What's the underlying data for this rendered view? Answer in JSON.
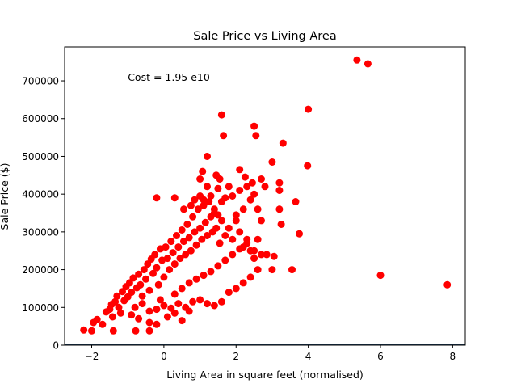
{
  "chart_data": {
    "type": "scatter",
    "title": "Sale Price vs Living Area",
    "xlabel": "Living Area in square feet (normalised)",
    "ylabel": "Sale Price ($)",
    "annotation": {
      "text": "Cost = 1.95 e10",
      "x": -1.0,
      "y": 700000
    },
    "xlim": [
      -2.75,
      8.35
    ],
    "ylim": [
      0,
      790000
    ],
    "xticks": [
      -2,
      0,
      2,
      4,
      6,
      8
    ],
    "xtick_labels": [
      "−2",
      "0",
      "2",
      "4",
      "6",
      "8"
    ],
    "yticks": [
      0,
      100000,
      200000,
      300000,
      400000,
      500000,
      600000,
      700000
    ],
    "ytick_labels": [
      "0",
      "100000",
      "200000",
      "300000",
      "400000",
      "500000",
      "600000",
      "700000"
    ],
    "grid": false,
    "point_color": "#ff0000",
    "baseline_color": "#1f3f5f",
    "series": [
      {
        "points": [
          [
            -2.22,
            40000
          ],
          [
            -2.0,
            38000
          ],
          [
            -1.95,
            60000
          ],
          [
            -1.85,
            68000
          ],
          [
            -1.7,
            55000
          ],
          [
            -1.6,
            88000
          ],
          [
            -1.5,
            95000
          ],
          [
            -1.45,
            108000
          ],
          [
            -1.42,
            75000
          ],
          [
            -1.4,
            38000
          ],
          [
            -1.35,
            115000
          ],
          [
            -1.3,
            130000
          ],
          [
            -1.25,
            100000
          ],
          [
            -1.2,
            85000
          ],
          [
            -1.15,
            142000
          ],
          [
            -1.1,
            118000
          ],
          [
            -1.05,
            155000
          ],
          [
            -1.0,
            128000
          ],
          [
            -0.95,
            165000
          ],
          [
            -0.9,
            140000
          ],
          [
            -0.85,
            178000
          ],
          [
            -0.8,
            100000
          ],
          [
            -0.78,
            38000
          ],
          [
            -0.75,
            152000
          ],
          [
            -0.7,
            188000
          ],
          [
            -0.65,
            160000
          ],
          [
            -0.6,
            130000
          ],
          [
            -0.55,
            200000
          ],
          [
            -0.5,
            175000
          ],
          [
            -0.45,
            215000
          ],
          [
            -0.4,
            145000
          ],
          [
            -0.35,
            228000
          ],
          [
            -0.3,
            190000
          ],
          [
            -0.25,
            240000
          ],
          [
            -0.2,
            205000
          ],
          [
            -0.15,
            160000
          ],
          [
            -0.1,
            255000
          ],
          [
            -0.05,
            225000
          ],
          [
            0.0,
            180000
          ],
          [
            0.05,
            260000
          ],
          [
            0.1,
            230000
          ],
          [
            0.15,
            200000
          ],
          [
            0.2,
            275000
          ],
          [
            0.25,
            245000
          ],
          [
            0.3,
            215000
          ],
          [
            0.35,
            290000
          ],
          [
            0.4,
            260000
          ],
          [
            0.45,
            230000
          ],
          [
            0.5,
            305000
          ],
          [
            0.55,
            275000
          ],
          [
            0.6,
            240000
          ],
          [
            0.65,
            320000
          ],
          [
            0.7,
            285000
          ],
          [
            0.75,
            250000
          ],
          [
            0.8,
            340000
          ],
          [
            0.85,
            300000
          ],
          [
            0.9,
            265000
          ],
          [
            0.95,
            360000
          ],
          [
            1.0,
            310000
          ],
          [
            1.05,
            280000
          ],
          [
            1.1,
            370000
          ],
          [
            1.15,
            325000
          ],
          [
            1.2,
            290000
          ],
          [
            1.25,
            380000
          ],
          [
            1.3,
            340000
          ],
          [
            1.35,
            300000
          ],
          [
            1.4,
            350000
          ],
          [
            1.45,
            310000
          ],
          [
            1.5,
            345000
          ],
          [
            1.55,
            270000
          ],
          [
            1.6,
            330000
          ],
          [
            1.7,
            290000
          ],
          [
            1.8,
            310000
          ],
          [
            1.9,
            280000
          ],
          [
            2.0,
            330000
          ],
          [
            2.1,
            300000
          ],
          [
            2.2,
            260000
          ],
          [
            2.3,
            280000
          ],
          [
            2.4,
            250000
          ],
          [
            2.5,
            230000
          ],
          [
            -0.6,
            110000
          ],
          [
            -0.4,
            90000
          ],
          [
            -0.2,
            95000
          ],
          [
            0.0,
            105000
          ],
          [
            0.2,
            98000
          ],
          [
            0.4,
            110000
          ],
          [
            0.6,
            100000
          ],
          [
            0.8,
            115000
          ],
          [
            1.0,
            120000
          ],
          [
            1.2,
            110000
          ],
          [
            1.4,
            105000
          ],
          [
            1.6,
            115000
          ],
          [
            1.8,
            140000
          ],
          [
            2.0,
            150000
          ],
          [
            2.2,
            165000
          ],
          [
            2.4,
            180000
          ],
          [
            2.6,
            200000
          ],
          [
            -0.9,
            80000
          ],
          [
            -0.7,
            70000
          ],
          [
            -0.4,
            60000
          ],
          [
            -0.2,
            55000
          ],
          [
            0.1,
            75000
          ],
          [
            0.3,
            85000
          ],
          [
            0.5,
            65000
          ],
          [
            0.7,
            90000
          ],
          [
            -0.4,
            38000
          ],
          [
            -0.1,
            120000
          ],
          [
            0.3,
            135000
          ],
          [
            0.5,
            150000
          ],
          [
            0.7,
            165000
          ],
          [
            0.9,
            175000
          ],
          [
            1.1,
            185000
          ],
          [
            1.3,
            195000
          ],
          [
            1.5,
            210000
          ],
          [
            1.7,
            225000
          ],
          [
            1.9,
            240000
          ],
          [
            2.1,
            255000
          ],
          [
            2.3,
            270000
          ],
          [
            2.5,
            250000
          ],
          [
            2.7,
            240000
          ],
          [
            -0.2,
            390000
          ],
          [
            0.3,
            390000
          ],
          [
            0.55,
            360000
          ],
          [
            0.75,
            370000
          ],
          [
            0.85,
            385000
          ],
          [
            1.0,
            395000
          ],
          [
            1.1,
            385000
          ],
          [
            1.2,
            420000
          ],
          [
            1.3,
            395000
          ],
          [
            1.4,
            360000
          ],
          [
            1.5,
            415000
          ],
          [
            1.55,
            440000
          ],
          [
            1.6,
            380000
          ],
          [
            1.7,
            390000
          ],
          [
            1.8,
            420000
          ],
          [
            1.9,
            395000
          ],
          [
            2.0,
            345000
          ],
          [
            2.1,
            410000
          ],
          [
            2.2,
            360000
          ],
          [
            2.3,
            420000
          ],
          [
            2.4,
            385000
          ],
          [
            2.5,
            400000
          ],
          [
            2.6,
            360000
          ],
          [
            2.7,
            330000
          ],
          [
            2.8,
            420000
          ],
          [
            1.0,
            440000
          ],
          [
            1.07,
            460000
          ],
          [
            1.2,
            500000
          ],
          [
            1.45,
            450000
          ],
          [
            1.6,
            610000
          ],
          [
            1.65,
            555000
          ],
          [
            2.1,
            465000
          ],
          [
            2.25,
            445000
          ],
          [
            2.45,
            430000
          ],
          [
            2.5,
            580000
          ],
          [
            2.55,
            555000
          ],
          [
            2.7,
            440000
          ],
          [
            3.0,
            485000
          ],
          [
            3.3,
            535000
          ],
          [
            3.2,
            430000
          ],
          [
            3.2,
            410000
          ],
          [
            3.2,
            360000
          ],
          [
            3.25,
            320000
          ],
          [
            3.65,
            380000
          ],
          [
            3.75,
            295000
          ],
          [
            3.55,
            200000
          ],
          [
            3.05,
            235000
          ],
          [
            3.0,
            200000
          ],
          [
            2.85,
            240000
          ],
          [
            2.6,
            280000
          ],
          [
            4.0,
            625000
          ],
          [
            3.98,
            475000
          ],
          [
            5.35,
            755000
          ],
          [
            5.65,
            745000
          ],
          [
            6.0,
            185000
          ],
          [
            7.85,
            160000
          ]
        ]
      }
    ]
  }
}
